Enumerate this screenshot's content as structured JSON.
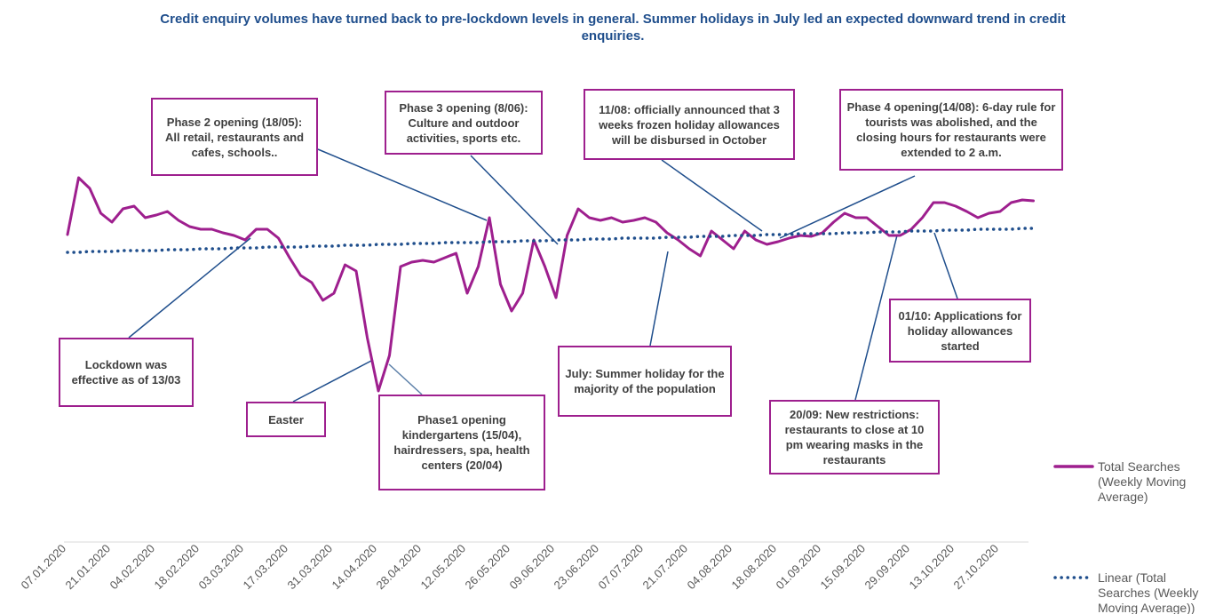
{
  "chart_data": {
    "type": "line",
    "title": "Credit enquiry volumes have turned back to pre-lockdown levels in general. Summer holidays in July led an expected downward trend in credit enquiries.",
    "categories": [
      "07.01.2020",
      null,
      null,
      null,
      "21.01.2020",
      null,
      null,
      null,
      "04.02.2020",
      null,
      null,
      null,
      "18.02.2020",
      null,
      null,
      null,
      "03.03.2020",
      null,
      null,
      null,
      "17.03.2020",
      null,
      null,
      null,
      "31.03.2020",
      null,
      null,
      null,
      "14.04.2020",
      null,
      null,
      null,
      "28.04.2020",
      null,
      null,
      null,
      "12.05.2020",
      null,
      null,
      null,
      "26.05.2020",
      null,
      null,
      null,
      "09.06.2020",
      null,
      null,
      null,
      "23.06.2020",
      null,
      null,
      null,
      "07.07.2020",
      null,
      null,
      null,
      "21.07.2020",
      null,
      null,
      null,
      "04.08.2020",
      null,
      null,
      null,
      "18.08.2020",
      null,
      null,
      null,
      "01.09.2020",
      null,
      null,
      null,
      "15.09.2020",
      null,
      null,
      null,
      "29.09.2020",
      null,
      null,
      null,
      "13.10.2020",
      null,
      null,
      null,
      "27.10.2020",
      null,
      null,
      null
    ],
    "ylim": [
      0,
      450
    ],
    "series": [
      {
        "name": "Total Searches (Weekly Moving Average)",
        "color": "#9e1f8e",
        "style": "solid",
        "values": [
          336,
          400,
          388,
          360,
          350,
          365,
          368,
          355,
          358,
          362,
          352,
          345,
          342,
          342,
          338,
          335,
          330,
          342,
          342,
          332,
          310,
          290,
          282,
          262,
          270,
          302,
          295,
          220,
          160,
          200,
          300,
          305,
          307,
          305,
          310,
          315,
          270,
          300,
          355,
          280,
          250,
          270,
          330,
          300,
          265,
          335,
          365,
          355,
          352,
          355,
          350,
          352,
          355,
          350,
          338,
          330,
          320,
          312,
          340,
          330,
          320,
          340,
          330,
          325,
          328,
          332,
          335,
          334,
          338,
          350,
          360,
          355,
          355,
          345,
          335,
          335,
          342,
          355,
          372,
          372,
          368,
          362,
          355,
          360,
          362,
          372,
          375,
          374
        ]
      },
      {
        "name": "Linear (Total Searches (Weekly Moving Average))",
        "color": "#1f4e8c",
        "style": "dotted",
        "values": [
          316,
          316,
          317,
          317,
          317,
          318,
          318,
          318,
          318,
          319,
          319,
          319,
          320,
          320,
          320,
          321,
          321,
          321,
          322,
          322,
          322,
          322,
          323,
          323,
          323,
          324,
          324,
          324,
          325,
          325,
          325,
          326,
          326,
          326,
          327,
          327,
          327,
          327,
          328,
          328,
          328,
          329,
          329,
          329,
          330,
          330,
          330,
          331,
          331,
          331,
          332,
          332,
          332,
          332,
          333,
          333,
          333,
          334,
          334,
          334,
          335,
          335,
          335,
          336,
          336,
          336,
          337,
          337,
          337,
          337,
          338,
          338,
          338,
          339,
          339,
          339,
          340,
          340,
          340,
          341,
          341,
          341,
          342,
          342,
          342,
          342,
          343,
          343
        ]
      }
    ],
    "annotations": [
      "Phase 2 opening (18/05): All retail, restaurants and cafes, schools..",
      "Phase 3 opening (8/06): Culture and outdoor activities, sports etc.",
      "11/08: officially announced that 3 weeks frozen holiday allowances will be disbursed in October",
      "Phase 4 opening(14/08): 6-day rule for tourists was abolished, and the closing hours for restaurants were extended to 2 a.m.",
      "Lockdown was effective as of 13/03",
      "Easter",
      "Phase1 opening kindergartens (15/04), hairdressers, spa, health centers (20/04)",
      "July: Summer holiday for the majority of the population",
      "20/09: New restrictions: restaurants to close at 10 pm wearing masks in the restaurants",
      "01/10: Applications for holiday allowances started"
    ]
  }
}
